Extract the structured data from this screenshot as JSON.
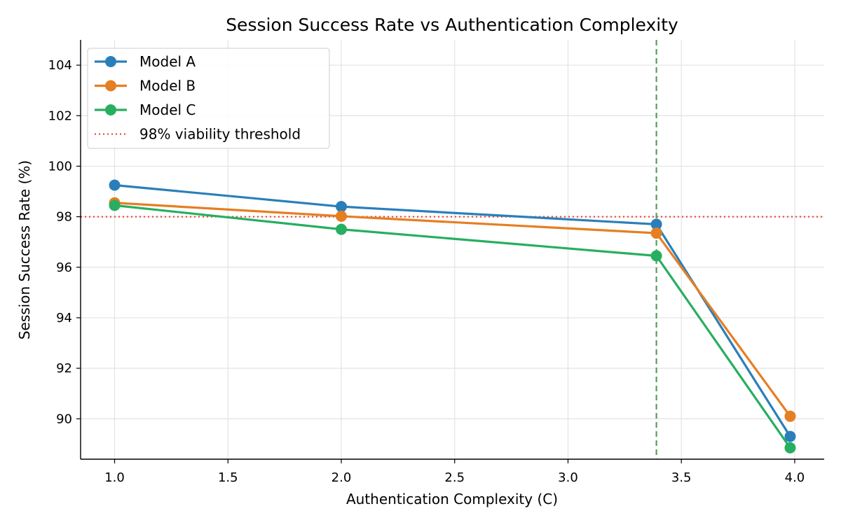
{
  "chart_data": {
    "type": "line",
    "title": "Session Success Rate vs Authentication Complexity",
    "xlabel": "Authentication Complexity (C)",
    "ylabel": "Session Success Rate (%)",
    "xlim": [
      0.85,
      4.13
    ],
    "ylim": [
      88.4,
      105.0
    ],
    "xticks": [
      1.0,
      1.5,
      2.0,
      2.5,
      3.0,
      3.5,
      4.0
    ],
    "xtick_labels": [
      "1.0",
      "1.5",
      "2.0",
      "2.5",
      "3.0",
      "3.5",
      "4.0"
    ],
    "yticks": [
      90,
      92,
      94,
      96,
      98,
      100,
      102,
      104
    ],
    "ytick_labels": [
      "90",
      "92",
      "94",
      "96",
      "98",
      "100",
      "102",
      "104"
    ],
    "grid": true,
    "legend_position": "top-left",
    "x": [
      1.0,
      2.0,
      3.39,
      3.98
    ],
    "series": [
      {
        "name": "Model A",
        "color": "#2a7fba",
        "values": [
          99.25,
          98.4,
          97.7,
          89.3
        ]
      },
      {
        "name": "Model B",
        "color": "#e67e22",
        "values": [
          98.55,
          98.02,
          97.35,
          90.1
        ]
      },
      {
        "name": "Model C",
        "color": "#27ae60",
        "values": [
          98.45,
          97.5,
          96.45,
          88.85
        ]
      }
    ],
    "reference_lines": [
      {
        "orientation": "horizontal",
        "value": 98,
        "style": "dotted",
        "color": "#e74c3c",
        "label": "98% viability threshold"
      },
      {
        "orientation": "vertical",
        "value": 3.39,
        "style": "dashed",
        "color": "#5a9e5a"
      }
    ]
  }
}
